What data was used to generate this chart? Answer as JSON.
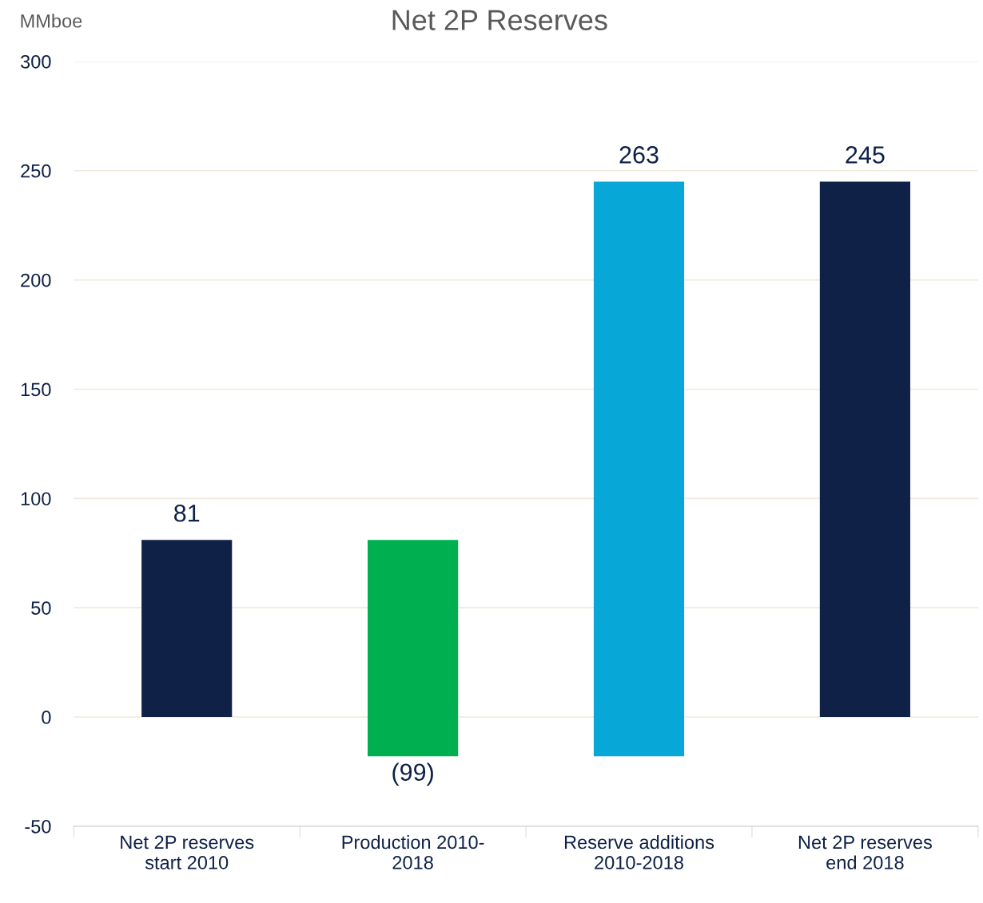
{
  "chart_data": {
    "type": "bar",
    "title": "Net 2P Reserves",
    "ylabel": "MMboe",
    "categories": [
      "Net 2P reserves\nstart 2010",
      "Production 2010-\n2018",
      "Reserve additions\n2010-2018",
      "Net 2P reserves\nend 2018"
    ],
    "values": [
      81,
      -99,
      263,
      245
    ],
    "base": [
      0,
      81,
      -18,
      0
    ],
    "colors": [
      "#0f2147",
      "#00b050",
      "#07a8d8",
      "#0f2147"
    ],
    "value_labels": [
      "81",
      "(99)",
      "263",
      "245"
    ],
    "ylim": [
      -50,
      300
    ],
    "yticks": [
      -50,
      0,
      50,
      100,
      150,
      200,
      250,
      300
    ],
    "grid": "y"
  }
}
